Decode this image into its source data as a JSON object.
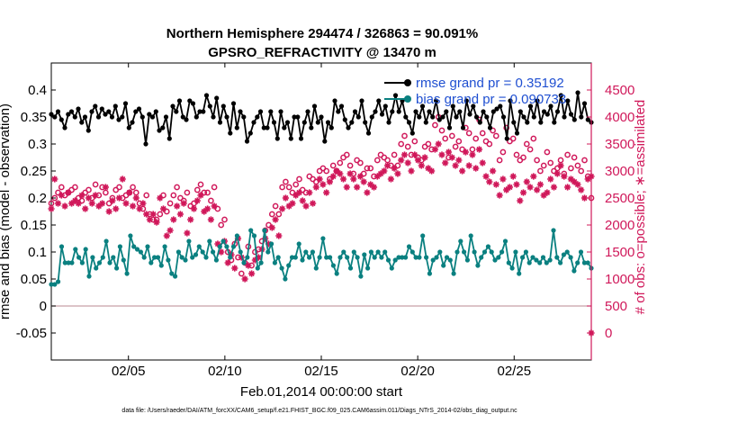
{
  "chart_data": {
    "type": "line",
    "title": "Northern Hemisphere 294474 / 326863 = 90.091%",
    "subtitle": "GPSRO_REFRACTIVITY @ 13470 m",
    "xlabel": "Feb.01,2014 00:00:00 start",
    "ylabel_left": "rmse and bias (model - observation)",
    "ylabel_right": "# of obs: o=possible; ∗=assimilated",
    "footer": "data file: /Users/raeder/DAI/ATM_forcXX/CAM6_setup/f.e21.FHIST_BGC.f09_025.CAM6assim.011/Diags_NTrS_2014-02/obs_diag_output.nc",
    "x_tick_labels": [
      "02/05",
      "02/10",
      "02/15",
      "02/20",
      "02/25"
    ],
    "x_tick_days": [
      5,
      10,
      15,
      20,
      25
    ],
    "xlim_days": [
      1,
      29
    ],
    "ylim_left": [
      -0.1,
      0.45
    ],
    "yticks_left": [
      "-0.05",
      "0",
      "0.05",
      "0.1",
      "0.15",
      "0.2",
      "0.25",
      "0.3",
      "0.35",
      "0.4"
    ],
    "ytick_values_left": [
      -0.05,
      0,
      0.05,
      0.1,
      0.15,
      0.2,
      0.25,
      0.3,
      0.35,
      0.4
    ],
    "ylim_right": [
      -500,
      5000
    ],
    "yticks_right": [
      "0",
      "500",
      "1000",
      "1500",
      "2000",
      "2500",
      "3000",
      "3500",
      "4000",
      "4500"
    ],
    "ytick_values_right": [
      0,
      500,
      1000,
      1500,
      2000,
      2500,
      3000,
      3500,
      4000,
      4500
    ],
    "legend_placement": "top-right",
    "grid": false,
    "colors": {
      "rmse": "#000000",
      "bias": "#0a8080",
      "obs": "#d0185a",
      "legend_text": "#1f4fd1",
      "zero_line": "#c8a0a8"
    },
    "series": [
      {
        "name": "rmse grand pr = 0.35192",
        "axis": "left",
        "values": [
          0.355,
          0.35,
          0.36,
          0.345,
          0.33,
          0.355,
          0.36,
          0.35,
          0.365,
          0.34,
          0.35,
          0.325,
          0.36,
          0.37,
          0.35,
          0.365,
          0.355,
          0.36,
          0.35,
          0.37,
          0.345,
          0.35,
          0.375,
          0.33,
          0.34,
          0.36,
          0.365,
          0.35,
          0.3,
          0.355,
          0.35,
          0.36,
          0.325,
          0.33,
          0.35,
          0.31,
          0.37,
          0.36,
          0.38,
          0.35,
          0.345,
          0.38,
          0.375,
          0.35,
          0.36,
          0.36,
          0.39,
          0.37,
          0.35,
          0.385,
          0.34,
          0.37,
          0.35,
          0.32,
          0.375,
          0.33,
          0.36,
          0.35,
          0.305,
          0.32,
          0.34,
          0.35,
          0.36,
          0.33,
          0.33,
          0.36,
          0.34,
          0.31,
          0.36,
          0.33,
          0.34,
          0.31,
          0.35,
          0.35,
          0.31,
          0.34,
          0.36,
          0.33,
          0.37,
          0.34,
          0.35,
          0.305,
          0.34,
          0.33,
          0.38,
          0.36,
          0.37,
          0.345,
          0.33,
          0.34,
          0.36,
          0.35,
          0.38,
          0.34,
          0.32,
          0.35,
          0.36,
          0.38,
          0.355,
          0.37,
          0.34,
          0.36,
          0.39,
          0.36,
          0.38,
          0.35,
          0.34,
          0.32,
          0.36,
          0.35,
          0.37,
          0.34,
          0.36,
          0.35,
          0.38,
          0.345,
          0.35,
          0.36,
          0.33,
          0.37,
          0.35,
          0.36,
          0.33,
          0.38,
          0.355,
          0.37,
          0.35,
          0.34,
          0.36,
          0.35,
          0.33,
          0.36,
          0.365,
          0.37,
          0.35,
          0.31,
          0.38,
          0.34,
          0.32,
          0.36,
          0.35,
          0.34,
          0.37,
          0.35,
          0.38,
          0.34,
          0.36,
          0.355,
          0.37,
          0.34,
          0.36,
          0.39,
          0.35,
          0.38,
          0.355,
          0.345,
          0.395,
          0.35,
          0.375,
          0.345,
          0.34
        ]
      },
      {
        "name": "bias grand pr = 0.090733",
        "axis": "left",
        "values": [
          0.04,
          0.04,
          0.045,
          0.11,
          0.08,
          0.08,
          0.08,
          0.105,
          0.09,
          0.08,
          0.105,
          0.055,
          0.09,
          0.07,
          0.08,
          0.09,
          0.12,
          0.08,
          0.09,
          0.07,
          0.11,
          0.085,
          0.06,
          0.13,
          0.11,
          0.105,
          0.1,
          0.09,
          0.11,
          0.08,
          0.09,
          0.09,
          0.075,
          0.11,
          0.085,
          0.06,
          0.055,
          0.1,
          0.09,
          0.085,
          0.12,
          0.09,
          0.095,
          0.11,
          0.1,
          0.09,
          0.12,
          0.1,
          0.085,
          0.11,
          0.12,
          0.11,
          0.09,
          0.11,
          0.13,
          0.1,
          0.08,
          0.09,
          0.14,
          0.13,
          0.07,
          0.08,
          0.14,
          0.1,
          0.115,
          0.08,
          0.09,
          0.07,
          0.05,
          0.075,
          0.09,
          0.09,
          0.115,
          0.085,
          0.1,
          0.09,
          0.1,
          0.07,
          0.09,
          0.125,
          0.09,
          0.09,
          0.075,
          0.06,
          0.09,
          0.1,
          0.09,
          0.07,
          0.1,
          0.09,
          0.055,
          0.095,
          0.07,
          0.1,
          0.09,
          0.1,
          0.09,
          0.1,
          0.085,
          0.07,
          0.085,
          0.09,
          0.09,
          0.09,
          0.11,
          0.1,
          0.09,
          0.09,
          0.13,
          0.09,
          0.06,
          0.085,
          0.09,
          0.1,
          0.075,
          0.09,
          0.085,
          0.06,
          0.1,
          0.12,
          0.1,
          0.085,
          0.13,
          0.1,
          0.075,
          0.09,
          0.1,
          0.11,
          0.1,
          0.085,
          0.09,
          0.1,
          0.12,
          0.08,
          0.07,
          0.1,
          0.06,
          0.09,
          0.1,
          0.08,
          0.09,
          0.085,
          0.08,
          0.09,
          0.08,
          0.085,
          0.14,
          0.09,
          0.08,
          0.095,
          0.1,
          0.09,
          0.065,
          0.08,
          0.1,
          0.08,
          0.08,
          0.07
        ]
      },
      {
        "name": "possible",
        "axis": "right",
        "marker": "o",
        "values": [
          2400,
          2500,
          2600,
          2700,
          2550,
          2600,
          2650,
          2700,
          2500,
          2450,
          2600,
          2650,
          2500,
          2750,
          2550,
          2700,
          2600,
          2400,
          2500,
          2650,
          2700,
          2500,
          2550,
          2600,
          2700,
          2600,
          2400,
          2300,
          2550,
          2200,
          2100,
          2100,
          2200,
          2550,
          2250,
          2400,
          2550,
          2700,
          2500,
          2450,
          2600,
          2350,
          2400,
          2650,
          2750,
          2600,
          2600,
          2450,
          2700,
          2300,
          2000,
          2100,
          1500,
          1350,
          1650,
          1400,
          1100,
          1300,
          1600,
          1250,
          1500,
          1550,
          1700,
          1900,
          2000,
          2200,
          2350,
          2200,
          2700,
          2800,
          2700,
          2600,
          2750,
          2850,
          2650,
          2600,
          2900,
          2850,
          2800,
          3000,
          3050,
          3000,
          2850,
          3100,
          3000,
          3150,
          3250,
          3300,
          3100,
          2950,
          3200,
          3150,
          2950,
          3050,
          3050,
          2900,
          3200,
          3300,
          3250,
          3200,
          3100,
          3300,
          3100,
          3500,
          3650,
          3450,
          3300,
          3550,
          3250,
          3200,
          3450,
          3500,
          3400,
          3850,
          4000,
          3750,
          3600,
          3250,
          3650,
          3450,
          3550,
          3400,
          3800,
          3700,
          3400,
          3600,
          3950,
          3700,
          3550,
          3500,
          3750,
          3650,
          3200,
          3350,
          3800,
          3550,
          3600,
          3300,
          3200,
          3250,
          3500,
          3400,
          3600,
          3200,
          3000,
          3100,
          3350,
          3150,
          3000,
          3050,
          3200,
          2950,
          3300,
          3050,
          3250,
          3100,
          3000,
          3200,
          2900,
          2500
        ]
      },
      {
        "name": "assimilated",
        "axis": "right",
        "marker": "*",
        "values": [
          2300,
          2850,
          2400,
          2550,
          2350,
          2600,
          2400,
          2450,
          2400,
          2550,
          2300,
          2500,
          2400,
          2550,
          2350,
          2400,
          2700,
          2250,
          2450,
          2300,
          2500,
          2850,
          2400,
          2600,
          2350,
          2500,
          2300,
          2400,
          2200,
          2100,
          2200,
          2050,
          2500,
          2300,
          1800,
          1900,
          2100,
          2350,
          2200,
          2400,
          1850,
          2100,
          2300,
          2450,
          2550,
          2250,
          2300,
          2100,
          2350,
          1650,
          1500,
          1700,
          1300,
          1450,
          1200,
          1750,
          1400,
          1000,
          1250,
          1100,
          1350,
          1400,
          1550,
          1750,
          1650,
          1950,
          2100,
          1800,
          2300,
          2500,
          2350,
          2400,
          2550,
          2600,
          2450,
          2350,
          2600,
          2400,
          2700,
          2850,
          2750,
          2600,
          2800,
          2900,
          3000,
          2950,
          2850,
          2700,
          2950,
          2850,
          2700,
          2900,
          2800,
          2600,
          2750,
          2700,
          2900,
          2950,
          3000,
          3100,
          2850,
          3050,
          2950,
          3200,
          3300,
          3150,
          3000,
          3300,
          3200,
          3100,
          3250,
          3050,
          3000,
          3400,
          3500,
          3300,
          3150,
          3350,
          3250,
          3100,
          3200,
          3000,
          3350,
          3100,
          3300,
          3050,
          3400,
          3150,
          2900,
          2800,
          3000,
          2750,
          2550,
          2850,
          2650,
          2700,
          2900,
          2750,
          2450,
          2600,
          2800,
          2700,
          2900,
          2650,
          2750,
          2550,
          2600,
          2850,
          2700,
          2950,
          3100,
          2900,
          2700,
          2850,
          2800,
          2750,
          2650,
          2500,
          2850,
          2900
        ]
      }
    ],
    "outliers": [
      {
        "name": "assimilated-minimum",
        "x_day": 29,
        "value": 0,
        "marker": "*"
      }
    ]
  }
}
